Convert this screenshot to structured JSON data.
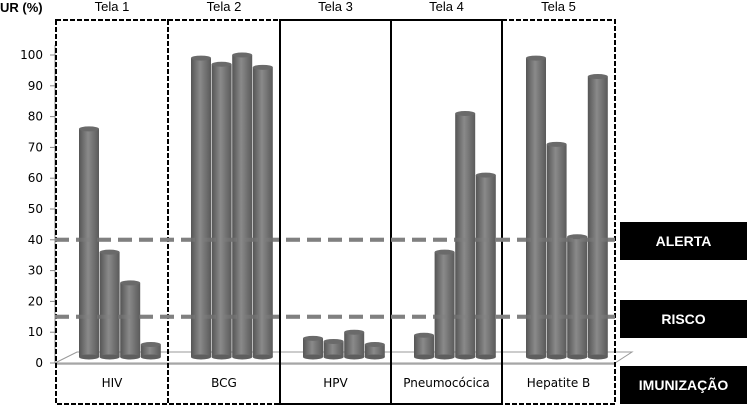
{
  "chart_data": {
    "type": "bar",
    "style": "3d-cylinder",
    "ylabel": "UR (%)",
    "xlabel": "",
    "ylim": [
      0,
      100
    ],
    "yticks": [
      0,
      10,
      20,
      30,
      40,
      50,
      60,
      70,
      80,
      90,
      100
    ],
    "grid": false,
    "panels": [
      "Tela 1",
      "Tela 2",
      "Tela 3",
      "Tela 4",
      "Tela 5"
    ],
    "categories": [
      "HIV",
      "BCG",
      "HPV",
      "Pneumocócica",
      "Hepatite B"
    ],
    "groups": [
      {
        "category": "HIV",
        "panel": "Tela 1",
        "values": [
          76,
          36,
          26,
          6
        ]
      },
      {
        "category": "BCG",
        "panel": "Tela 2",
        "values": [
          99,
          97,
          100,
          96
        ]
      },
      {
        "category": "HPV",
        "panel": "Tela 3",
        "values": [
          8,
          7,
          10,
          6
        ]
      },
      {
        "category": "Pneumocócica",
        "panel": "Tela 4",
        "values": [
          9,
          36,
          81,
          61
        ]
      },
      {
        "category": "Hepatite B",
        "panel": "Tela 5",
        "values": [
          99,
          71,
          41,
          93
        ]
      }
    ],
    "reference_lines": [
      {
        "name": "ALERTA",
        "value": 40
      },
      {
        "name": "RISCO",
        "value": 15
      }
    ],
    "bar_color": "#7a7a7a",
    "line_color": "#808080"
  },
  "labels": {
    "alerta": "ALERTA",
    "risco": "RISCO",
    "imunizacao": "IMUNIZAÇÃO"
  }
}
